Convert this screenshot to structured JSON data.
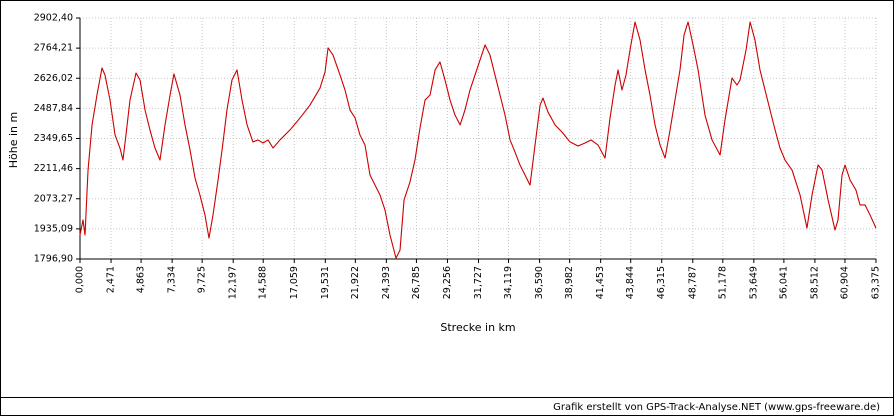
{
  "chart_data": {
    "type": "line",
    "xlabel": "Strecke  in  km",
    "ylabel": "Höhe  in  m",
    "footer": "Grafik erstellt von GPS-Track-Analyse.NET (www.gps-freeware.de)",
    "grid": true,
    "xlim": [
      0,
      63.375
    ],
    "ylim": [
      1796.9,
      2902.4
    ],
    "xticks": [
      {
        "value": 0,
        "label": "0,000"
      },
      {
        "value": 2.471,
        "label": "2,471"
      },
      {
        "value": 4.863,
        "label": "4,863"
      },
      {
        "value": 7.334,
        "label": "7,334"
      },
      {
        "value": 9.725,
        "label": "9,725"
      },
      {
        "value": 12.197,
        "label": "12,197"
      },
      {
        "value": 14.588,
        "label": "14,588"
      },
      {
        "value": 17.059,
        "label": "17,059"
      },
      {
        "value": 19.531,
        "label": "19,531"
      },
      {
        "value": 21.922,
        "label": "21,922"
      },
      {
        "value": 24.393,
        "label": "24,393"
      },
      {
        "value": 26.785,
        "label": "26,785"
      },
      {
        "value": 29.256,
        "label": "29,256"
      },
      {
        "value": 31.727,
        "label": "31,727"
      },
      {
        "value": 34.119,
        "label": "34,119"
      },
      {
        "value": 36.59,
        "label": "36,590"
      },
      {
        "value": 38.982,
        "label": "38,982"
      },
      {
        "value": 41.453,
        "label": "41,453"
      },
      {
        "value": 43.844,
        "label": "43,844"
      },
      {
        "value": 46.315,
        "label": "46,315"
      },
      {
        "value": 48.787,
        "label": "48,787"
      },
      {
        "value": 51.178,
        "label": "51,178"
      },
      {
        "value": 53.649,
        "label": "53,649"
      },
      {
        "value": 56.041,
        "label": "56,041"
      },
      {
        "value": 58.512,
        "label": "58,512"
      },
      {
        "value": 60.904,
        "label": "60,904"
      },
      {
        "value": 63.375,
        "label": "63,375"
      }
    ],
    "yticks": [
      {
        "value": 1796.9,
        "label": "1796,90"
      },
      {
        "value": 1935.09,
        "label": "1935,09"
      },
      {
        "value": 2073.27,
        "label": "2073,27"
      },
      {
        "value": 2211.46,
        "label": "2211,46"
      },
      {
        "value": 2349.65,
        "label": "2349,65"
      },
      {
        "value": 2487.84,
        "label": "2487,84"
      },
      {
        "value": 2626.02,
        "label": "2626,02"
      },
      {
        "value": 2764.21,
        "label": "2764,21"
      },
      {
        "value": 2902.4,
        "label": "2902,40"
      }
    ],
    "x": [
      0,
      0.24,
      0.4,
      0.64,
      0.96,
      1.35,
      1.75,
      1.99,
      2.39,
      2.79,
      3.18,
      3.42,
      3.66,
      3.98,
      4.46,
      4.78,
      5.18,
      5.57,
      5.97,
      6.37,
      6.77,
      7.17,
      7.48,
      7.96,
      8.36,
      8.76,
      9.16,
      9.55,
      9.95,
      10.27,
      10.59,
      10.99,
      11.31,
      11.7,
      12.1,
      12.5,
      12.9,
      13.3,
      13.77,
      14.17,
      14.57,
      14.97,
      15.37,
      15.92,
      16.72,
      17.52,
      18.31,
      19.11,
      19.51,
      19.75,
      20.14,
      20.7,
      21.1,
      21.5,
      21.9,
      22.29,
      22.69,
      23.09,
      23.49,
      23.89,
      24.28,
      24.68,
      25.16,
      25.48,
      25.8,
      26.27,
      26.67,
      27.07,
      27.47,
      27.87,
      28.27,
      28.66,
      29.06,
      29.46,
      29.86,
      30.26,
      30.65,
      31.05,
      31.85,
      32.25,
      32.64,
      33.04,
      33.44,
      33.84,
      34.24,
      34.63,
      35.03,
      35.43,
      35.83,
      36.23,
      36.63,
      36.86,
      37.26,
      37.82,
      38.38,
      39.01,
      39.65,
      40.21,
      40.69,
      41.24,
      41.8,
      42.2,
      42.6,
      42.84,
      43.15,
      43.47,
      43.79,
      44.19,
      44.59,
      44.99,
      45.38,
      45.78,
      46.18,
      46.58,
      46.98,
      47.37,
      47.77,
      48.09,
      48.41,
      48.81,
      49.21,
      49.76,
      50.32,
      50.96,
      51.35,
      51.91,
      52.31,
      52.55,
      53.03,
      53.35,
      53.74,
      54.14,
      54.54,
      54.94,
      55.34,
      55.73,
      56.13,
      56.69,
      57.33,
      57.88,
      58.28,
      58.76,
      59.08,
      59.56,
      60.11,
      60.35,
      60.67,
      60.91,
      61.31,
      61.78,
      62.1,
      62.5,
      62.9,
      63.37
    ],
    "series": [
      {
        "name": "Höhe",
        "color": "#cc0000",
        "values": [
          1907,
          1976,
          1907,
          2205,
          2412,
          2549,
          2673,
          2641,
          2526,
          2366,
          2306,
          2251,
          2366,
          2526,
          2650,
          2618,
          2480,
          2389,
          2306,
          2251,
          2412,
          2549,
          2646,
          2549,
          2412,
          2297,
          2168,
          2090,
          1999,
          1893,
          1999,
          2159,
          2297,
          2480,
          2618,
          2664,
          2526,
          2412,
          2334,
          2343,
          2329,
          2343,
          2306,
          2343,
          2389,
          2444,
          2503,
          2581,
          2655,
          2765,
          2733,
          2641,
          2572,
          2480,
          2444,
          2366,
          2320,
          2182,
          2136,
          2090,
          2022,
          1907,
          1801,
          1838,
          2068,
          2150,
          2251,
          2398,
          2526,
          2549,
          2664,
          2701,
          2618,
          2526,
          2457,
          2412,
          2480,
          2572,
          2710,
          2779,
          2733,
          2641,
          2549,
          2457,
          2343,
          2288,
          2228,
          2182,
          2136,
          2320,
          2503,
          2535,
          2471,
          2412,
          2379,
          2334,
          2315,
          2329,
          2343,
          2320,
          2260,
          2444,
          2595,
          2664,
          2572,
          2641,
          2756,
          2884,
          2801,
          2664,
          2549,
          2412,
          2320,
          2260,
          2389,
          2526,
          2664,
          2824,
          2884,
          2779,
          2664,
          2457,
          2343,
          2274,
          2434,
          2627,
          2595,
          2618,
          2756,
          2884,
          2801,
          2664,
          2572,
          2480,
          2389,
          2306,
          2251,
          2205,
          2090,
          1939,
          2090,
          2228,
          2205,
          2068,
          1930,
          1976,
          2182,
          2228,
          2159,
          2113,
          2045,
          2045,
          1999,
          1939
        ]
      }
    ]
  }
}
